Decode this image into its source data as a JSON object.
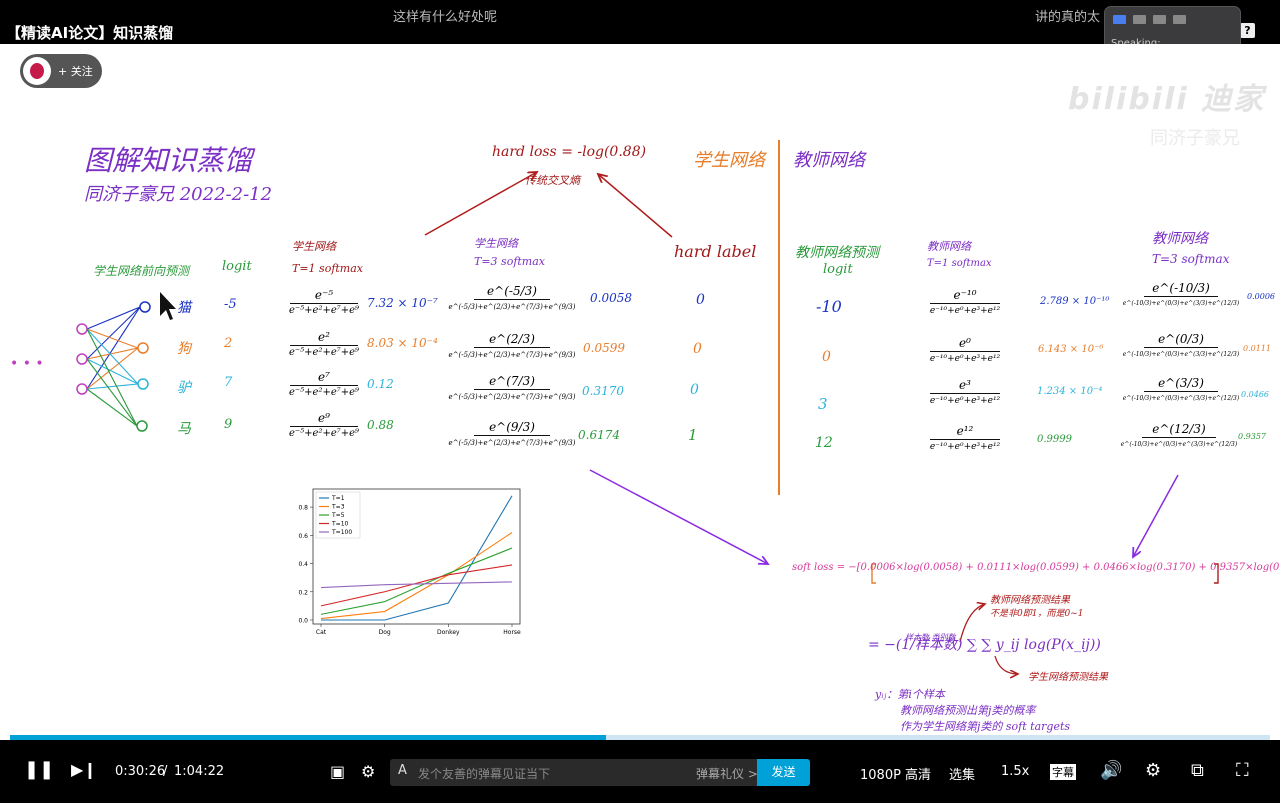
{
  "header": {
    "video_title": "【精读AI论文】知识蒸馏",
    "danmu_1": "这样有什么好处呢",
    "danmu_2": "讲的真的太",
    "help_label": "?",
    "speaking_label": "Speaking:"
  },
  "uploader": {
    "follow_label": "+ 关注"
  },
  "watermark": {
    "logo_text": "bilibili 迪家",
    "sub_text": "同济子豪兄"
  },
  "whiteboard": {
    "title": "图解知识蒸馏",
    "author": "同济子豪兄 2022-2-12",
    "hard_loss": "hard loss = -log(0.88)",
    "cross_entropy": "传统交叉熵",
    "hard_label_title": "hard label",
    "student_header": "学生网络",
    "teacher_header": "教师网络",
    "student_pred_label": "学生网络前向预测",
    "logit_label": "logit",
    "ellipsis": "• • •",
    "student_t1": [
      "学生网络",
      "T=1 softmax"
    ],
    "student_t3": [
      "学生网络",
      "T=3 softmax"
    ],
    "teacher_pred": [
      "教师网络预测",
      "logit"
    ],
    "teacher_t1": [
      "教师网络",
      "T=1 softmax"
    ],
    "teacher_t3": [
      "教师网络",
      "T=3 softmax"
    ],
    "classes": [
      "猫",
      "狗",
      "驴",
      "马"
    ],
    "student_logits": [
      "-5",
      "2",
      "7",
      "9"
    ],
    "student_t1_num": [
      "e⁻⁵",
      "e²",
      "e⁷",
      "e⁹"
    ],
    "student_t1_den": "e⁻⁵+e²+e⁷+e⁹",
    "student_t1_values": [
      "7.32 × 10⁻⁷",
      "8.03 × 10⁻⁴",
      "0.12",
      "0.88"
    ],
    "student_t3_num": [
      "e^(-5/3)",
      "e^(2/3)",
      "e^(7/3)",
      "e^(9/3)"
    ],
    "student_t3_den": "e^(-5/3)+e^(2/3)+e^(7/3)+e^(9/3)",
    "student_t3_values": [
      "0.0058",
      "0.0599",
      "0.3170",
      "0.6174"
    ],
    "hard_labels": [
      "0",
      "0",
      "0",
      "1"
    ],
    "teacher_logits": [
      "-10",
      "0",
      "3",
      "12"
    ],
    "teacher_t1_num": [
      "e⁻¹⁰",
      "e⁰",
      "e³",
      "e¹²"
    ],
    "teacher_t1_den": "e⁻¹⁰+e⁰+e³+e¹²",
    "teacher_t1_values": [
      "2.789 × 10⁻¹⁰",
      "6.143 × 10⁻⁶",
      "1.234 × 10⁻⁴",
      "0.9999"
    ],
    "teacher_t3_num": [
      "e^(-10/3)",
      "e^(0/3)",
      "e^(3/3)",
      "e^(12/3)"
    ],
    "teacher_t3_den": "e^(-10/3)+e^(0/3)+e^(3/3)+e^(12/3)",
    "teacher_t3_values": [
      "0.0006",
      "0.0111",
      "0.0466",
      "0.9357"
    ],
    "soft_loss": "soft loss = −[0.0006×log(0.0058) + 0.0111×log(0.0599) + 0.0466×log(0.3170) + 0.9357×log(0.6174)]",
    "formula": "= −(1/样本数) ∑ ∑ y_ij log(P(x_ij))",
    "formula_sum_labels": "样本数 类别数",
    "note_teacher": "教师网络预测结果",
    "note_teacher_sub": "不是非0即1，而是0~1",
    "note_student": "学生网络预测结果",
    "note_yij_1": "yᵢⱼ：第i个样本",
    "note_yij_2": "教师网络预测出第j类的概率",
    "note_yij_3": "作为学生网络第j类的 soft targets"
  },
  "chart_data": {
    "type": "line",
    "categories": [
      "Cat",
      "Dog",
      "Donkey",
      "Horse"
    ],
    "series": [
      {
        "name": "T=1",
        "values": [
          0.0,
          0.0,
          0.12,
          0.88
        ],
        "color": "#1f77b4"
      },
      {
        "name": "T=3",
        "values": [
          0.01,
          0.06,
          0.32,
          0.62
        ],
        "color": "#ff7f0e"
      },
      {
        "name": "T=5",
        "values": [
          0.04,
          0.13,
          0.33,
          0.51
        ],
        "color": "#2ca02c"
      },
      {
        "name": "T=10",
        "values": [
          0.1,
          0.2,
          0.32,
          0.39
        ],
        "color": "#d62728"
      },
      {
        "name": "T=100",
        "values": [
          0.23,
          0.25,
          0.26,
          0.27
        ],
        "color": "#9467bd"
      }
    ],
    "yticks": [
      "0.0",
      "0.2",
      "0.4",
      "0.6",
      "0.8"
    ],
    "ylim": [
      0,
      0.9
    ],
    "legend": "top-left"
  },
  "player": {
    "time_current": "0:30:26",
    "time_sep": "/",
    "time_total": "1:04:22",
    "progress": 0.473,
    "danmu_placeholder": "发个友善的弹幕见证当下",
    "danmu_etiquette": "弹幕礼仪 >",
    "send_label": "发送",
    "quality_label": "1080P 高清",
    "episodes_label": "选集",
    "speed_label": "1.5x",
    "subtitle_label": "字幕"
  }
}
